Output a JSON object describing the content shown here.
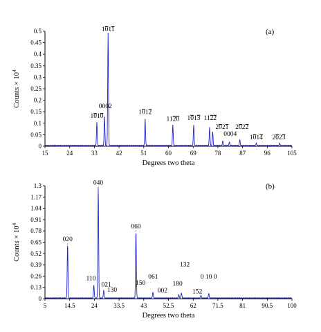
{
  "chart_data": [
    {
      "type": "line",
      "panel_label": "(a)",
      "xlabel": "Degrees two theta",
      "ylabel": "Counts × 10",
      "ylabel_exponent": "4",
      "xlim": [
        15,
        105
      ],
      "ylim": [
        0,
        0.5
      ],
      "xticks": [
        "15",
        "24",
        "33",
        "42",
        "51",
        "60",
        "69",
        "78",
        "87",
        "96",
        "105"
      ],
      "yticks": [
        "0",
        "0.05",
        "0.1",
        "0.15",
        "0.2",
        "0.25",
        "0.3",
        "0.35",
        "0.4",
        "0.45",
        "0.5"
      ],
      "line_color": "#2222cc",
      "peaks": [
        {
          "x": 33.9,
          "y": 0.1
        },
        {
          "x": 36.7,
          "y": 0.125
        },
        {
          "x": 38.0,
          "y": 0.49
        },
        {
          "x": 51.5,
          "y": 0.115
        },
        {
          "x": 61.6,
          "y": 0.09
        },
        {
          "x": 69.2,
          "y": 0.09
        },
        {
          "x": 75.0,
          "y": 0.08
        },
        {
          "x": 76.1,
          "y": 0.06
        },
        {
          "x": 79.8,
          "y": 0.02
        },
        {
          "x": 82.2,
          "y": 0.015
        },
        {
          "x": 86.0,
          "y": 0.025
        },
        {
          "x": 92.0,
          "y": 0.01
        },
        {
          "x": 100.5,
          "y": 0.01
        }
      ],
      "annotations": [
        {
          "text": "1010",
          "over": [
            1,
            3
          ],
          "x": 33.9,
          "y": 0.123
        },
        {
          "text": "0002",
          "x": 37.0,
          "y": 0.165
        },
        {
          "text": "1011",
          "over": [
            1,
            3
          ],
          "x": 38.0,
          "y": 0.5
        },
        {
          "text": "1012",
          "over": [
            1,
            3
          ],
          "x": 51.5,
          "y": 0.14
        },
        {
          "text": "1120",
          "over": [
            2,
            3
          ],
          "x": 61.6,
          "y": 0.11
        },
        {
          "text": "1013",
          "over": [
            1,
            3
          ],
          "x": 69.2,
          "y": 0.115
        },
        {
          "text": "1122",
          "over": [
            2,
            3
          ],
          "x": 75.2,
          "y": 0.115
        },
        {
          "text": "2021",
          "over": [
            1,
            3
          ],
          "x": 79.5,
          "y": 0.075
        },
        {
          "text": "0004",
          "x": 82.5,
          "y": 0.045
        },
        {
          "text": "2022",
          "over": [
            1,
            3
          ],
          "x": 86.8,
          "y": 0.075
        },
        {
          "text": "1014",
          "over": [
            1,
            3
          ],
          "x": 92.0,
          "y": 0.03
        },
        {
          "text": "2023",
          "over": [
            1,
            3
          ],
          "x": 100.2,
          "y": 0.03
        }
      ]
    },
    {
      "type": "line",
      "panel_label": "(b)",
      "xlabel": "Degrees two theta",
      "ylabel": "Counts × 10",
      "ylabel_exponent": "4",
      "xlim": [
        5,
        100
      ],
      "ylim": [
        0,
        1.3
      ],
      "xticks": [
        "5",
        "14.5",
        "24",
        "33.5",
        "43",
        "52.5",
        "62",
        "71.5",
        "81",
        "90.5",
        "100"
      ],
      "yticks": [
        "0",
        "0.13",
        "0.26",
        "0.39",
        "0.52",
        "0.65",
        "0.78",
        "0.91",
        "1.04",
        "1.17",
        "1.3"
      ],
      "line_color": "#2222cc",
      "peaks": [
        {
          "x": 13.7,
          "y": 0.63
        },
        {
          "x": 23.8,
          "y": 0.15
        },
        {
          "x": 25.5,
          "y": 1.28
        },
        {
          "x": 27.6,
          "y": 0.09
        },
        {
          "x": 40.0,
          "y": 0.78
        },
        {
          "x": 46.5,
          "y": 0.07
        },
        {
          "x": 56.5,
          "y": 0.04
        },
        {
          "x": 57.5,
          "y": 0.06
        },
        {
          "x": 65.0,
          "y": 0.03
        },
        {
          "x": 68.0,
          "y": 0.05
        }
      ],
      "annotations": [
        {
          "text": "020",
          "x": 13.7,
          "y": 0.66
        },
        {
          "text": "110",
          "x": 22.7,
          "y": 0.21
        },
        {
          "text": "040",
          "x": 25.5,
          "y": 1.31
        },
        {
          "text": "021",
          "x": 28.6,
          "y": 0.14
        },
        {
          "text": "130",
          "x": 30.8,
          "y": 0.08
        },
        {
          "text": "060",
          "x": 40.0,
          "y": 0.81
        },
        {
          "text": "150",
          "x": 41.8,
          "y": 0.16
        },
        {
          "text": "061",
          "x": 46.6,
          "y": 0.23
        },
        {
          "text": "002",
          "x": 50.2,
          "y": 0.07
        },
        {
          "text": "180",
          "x": 56.0,
          "y": 0.15
        },
        {
          "text": "132",
          "x": 58.8,
          "y": 0.37
        },
        {
          "text": "152",
          "x": 63.6,
          "y": 0.06
        },
        {
          "text": "0 10 0",
          "x": 68.0,
          "y": 0.23
        }
      ]
    }
  ]
}
